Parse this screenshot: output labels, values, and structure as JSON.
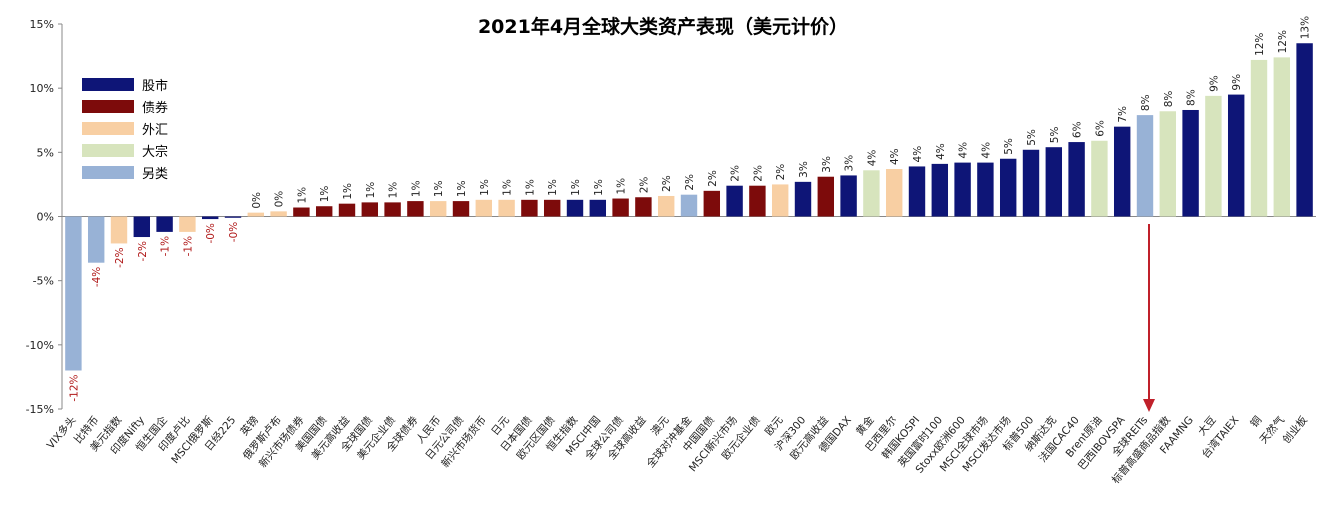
{
  "chart_data": {
    "type": "bar",
    "title": "2021年4月全球大类资产表现（美元计价）",
    "ylim": [
      -0.15,
      0.15
    ],
    "y_ticks": [
      "15%",
      "10%",
      "5%",
      "0%",
      "-5%",
      "-10%",
      "-15%"
    ],
    "y_tick_values": [
      0.15,
      0.1,
      0.05,
      0.0,
      -0.05,
      -0.1,
      -0.15
    ],
    "legend_position": "top-left",
    "colors": {
      "股市": "#0e1577",
      "债券": "#7d0b0b",
      "外汇": "#f8cfa3",
      "大宗": "#d7e4bd",
      "另类": "#98b2d6"
    },
    "legend": [
      {
        "name": "股市",
        "category": "股市"
      },
      {
        "name": "债券",
        "category": "债券"
      },
      {
        "name": "外汇",
        "category": "外汇"
      },
      {
        "name": "大宗",
        "category": "大宗"
      },
      {
        "name": "另类",
        "category": "另类"
      }
    ],
    "categories": [
      "VIX多头",
      "比特币",
      "美元指数",
      "印度Nifty",
      "恒生国企",
      "印度卢比",
      "MSCI俄罗斯",
      "日经225",
      "英镑",
      "俄罗斯卢布",
      "新兴市场债券",
      "美国国债",
      "美元高收益",
      "全球国债",
      "美元企业债",
      "全球债券",
      "人民币",
      "日元公司债",
      "新兴市场货币",
      "日元",
      "日本国债",
      "欧元区国债",
      "恒生指数",
      "MSCI中国",
      "全球公司债",
      "全球高收益",
      "澳元",
      "全球对冲基金",
      "中国国债",
      "MSCI新兴市场",
      "欧元企业债",
      "欧元",
      "沪深300",
      "欧元高收益",
      "德国DAX",
      "黄金",
      "巴西里尔",
      "韩国KOSPI",
      "英国富时100",
      "Stoxx欧洲600",
      "MSCI全球市场",
      "MSCI发达市场",
      "标普500",
      "纳斯达克",
      "法国CAC40",
      "Brent原油",
      "巴西IBOVSPA",
      "全球REITs",
      "标普高盛商品指数",
      "FAAMNG",
      "大豆",
      "台湾TAIEX",
      "铜",
      "天然气",
      "创业板"
    ],
    "values": [
      -0.12,
      -0.036,
      -0.021,
      -0.016,
      -0.012,
      -0.012,
      -0.002,
      -0.001,
      0.003,
      0.004,
      0.007,
      0.008,
      0.01,
      0.011,
      0.011,
      0.012,
      0.012,
      0.012,
      0.013,
      0.013,
      0.013,
      0.013,
      0.013,
      0.013,
      0.014,
      0.015,
      0.016,
      0.017,
      0.02,
      0.024,
      0.024,
      0.025,
      0.027,
      0.031,
      0.032,
      0.036,
      0.037,
      0.039,
      0.041,
      0.042,
      0.042,
      0.045,
      0.052,
      0.054,
      0.058,
      0.059,
      0.07,
      0.079,
      0.082,
      0.083,
      0.094,
      0.095,
      0.122,
      0.124,
      0.135
    ],
    "value_labels": [
      "-12%",
      "-4%",
      "-2%",
      "-2%",
      "-1%",
      "-1%",
      "-0%",
      "-0%",
      "0%",
      "0%",
      "1%",
      "1%",
      "1%",
      "1%",
      "1%",
      "1%",
      "1%",
      "1%",
      "1%",
      "1%",
      "1%",
      "1%",
      "1%",
      "1%",
      "1%",
      "2%",
      "2%",
      "2%",
      "2%",
      "2%",
      "2%",
      "2%",
      "3%",
      "3%",
      "3%",
      "4%",
      "4%",
      "4%",
      "4%",
      "4%",
      "4%",
      "5%",
      "5%",
      "5%",
      "6%",
      "6%",
      "7%",
      "8%",
      "8%",
      "8%",
      "9%",
      "9%",
      "12%",
      "12%",
      "13%"
    ],
    "asset_class": [
      "另类",
      "另类",
      "外汇",
      "股市",
      "股市",
      "外汇",
      "股市",
      "股市",
      "外汇",
      "外汇",
      "债券",
      "债券",
      "债券",
      "债券",
      "债券",
      "债券",
      "外汇",
      "债券",
      "外汇",
      "外汇",
      "债券",
      "债券",
      "股市",
      "股市",
      "债券",
      "债券",
      "外汇",
      "另类",
      "债券",
      "股市",
      "债券",
      "外汇",
      "股市",
      "债券",
      "股市",
      "大宗",
      "外汇",
      "股市",
      "股市",
      "股市",
      "股市",
      "股市",
      "股市",
      "股市",
      "股市",
      "大宗",
      "股市",
      "另类",
      "大宗",
      "股市",
      "大宗",
      "股市",
      "大宗",
      "大宗",
      "股市"
    ],
    "grid": false
  }
}
